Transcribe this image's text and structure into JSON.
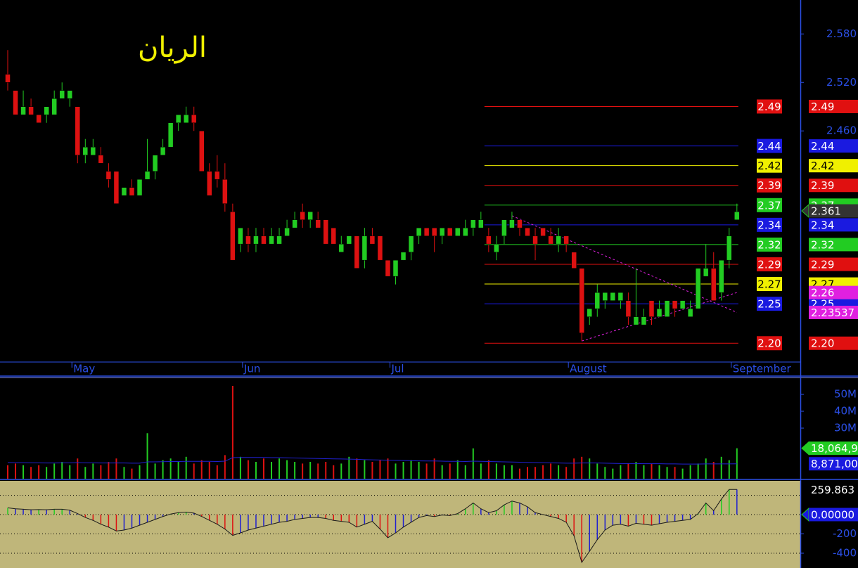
{
  "chart_data": [
    {
      "type": "candlestick",
      "title": "الريان",
      "categories": [
        null,
        null,
        null,
        null,
        null,
        null,
        null,
        null,
        "May",
        null,
        null,
        null,
        null,
        null,
        null,
        null,
        null,
        null,
        null,
        null,
        null,
        null,
        null,
        null,
        null,
        null,
        null,
        null,
        null,
        null,
        "Jun",
        null,
        null,
        null,
        null,
        null,
        null,
        null,
        null,
        null,
        null,
        null,
        null,
        null,
        null,
        null,
        null,
        null,
        null,
        "Jul",
        null,
        null,
        null,
        null,
        null,
        null,
        null,
        null,
        null,
        null,
        null,
        null,
        null,
        null,
        null,
        null,
        null,
        null,
        null,
        null,
        null,
        null,
        "August",
        null,
        null,
        null,
        null,
        null,
        null,
        null,
        null,
        null,
        null,
        null,
        null,
        null,
        null,
        null,
        null,
        null,
        null,
        null,
        null,
        "September",
        null
      ],
      "open": [
        2.53,
        2.51,
        2.48,
        2.49,
        2.48,
        2.48,
        2.48,
        2.5,
        2.5,
        2.49,
        2.43,
        2.43,
        2.43,
        2.41,
        2.41,
        2.38,
        2.39,
        2.38,
        2.4,
        2.41,
        2.43,
        2.44,
        2.47,
        2.47,
        2.48,
        2.46,
        2.41,
        2.41,
        2.4,
        2.36,
        2.32,
        2.33,
        2.32,
        2.33,
        2.32,
        2.32,
        2.33,
        2.34,
        2.36,
        2.35,
        2.35,
        2.35,
        2.34,
        2.31,
        2.32,
        2.33,
        2.3,
        2.33,
        2.33,
        2.3,
        2.28,
        2.3,
        2.31,
        2.33,
        2.34,
        2.34,
        2.33,
        2.34,
        2.33,
        2.33,
        2.34,
        2.34,
        2.33,
        2.31,
        2.33,
        2.34,
        2.35,
        2.34,
        2.33,
        2.34,
        2.33,
        2.32,
        2.33,
        2.31,
        2.29,
        2.23,
        2.24,
        2.25,
        2.25,
        2.25,
        2.25,
        2.22,
        2.22,
        2.25,
        2.23,
        2.23,
        2.25,
        2.24,
        2.23,
        2.24,
        2.28,
        2.29,
        2.26,
        2.3,
        2.35
      ],
      "high": [
        2.56,
        2.51,
        2.51,
        2.5,
        2.48,
        2.49,
        2.51,
        2.52,
        2.51,
        2.49,
        2.45,
        2.45,
        2.44,
        2.42,
        2.41,
        2.39,
        2.4,
        2.4,
        2.45,
        2.43,
        2.45,
        2.47,
        2.48,
        2.49,
        2.49,
        2.46,
        2.42,
        2.43,
        2.42,
        2.37,
        2.34,
        2.34,
        2.34,
        2.34,
        2.34,
        2.34,
        2.35,
        2.36,
        2.37,
        2.36,
        2.36,
        2.35,
        2.34,
        2.33,
        2.33,
        2.33,
        2.34,
        2.34,
        2.33,
        2.3,
        2.3,
        2.31,
        2.33,
        2.34,
        2.34,
        2.34,
        2.34,
        2.34,
        2.34,
        2.35,
        2.35,
        2.36,
        2.34,
        2.33,
        2.35,
        2.36,
        2.35,
        2.34,
        2.34,
        2.34,
        2.34,
        2.34,
        2.33,
        2.31,
        2.29,
        2.24,
        2.27,
        2.26,
        2.26,
        2.26,
        2.26,
        2.29,
        2.24,
        2.25,
        2.25,
        2.25,
        2.25,
        2.25,
        2.25,
        2.29,
        2.32,
        2.31,
        2.3,
        2.34,
        2.37
      ],
      "low": [
        2.51,
        2.48,
        2.48,
        2.48,
        2.47,
        2.47,
        2.48,
        2.5,
        2.49,
        2.42,
        2.42,
        2.43,
        2.42,
        2.39,
        2.37,
        2.38,
        2.38,
        2.38,
        2.4,
        2.4,
        2.43,
        2.44,
        2.46,
        2.47,
        2.46,
        2.41,
        2.38,
        2.39,
        2.36,
        2.3,
        2.31,
        2.31,
        2.31,
        2.32,
        2.32,
        2.32,
        2.33,
        2.34,
        2.34,
        2.34,
        2.34,
        2.32,
        2.32,
        2.31,
        2.32,
        2.29,
        2.29,
        2.32,
        2.3,
        2.28,
        2.27,
        2.3,
        2.3,
        2.32,
        2.33,
        2.31,
        2.32,
        2.33,
        2.33,
        2.33,
        2.33,
        2.34,
        2.31,
        2.3,
        2.32,
        2.34,
        2.33,
        2.33,
        2.3,
        2.33,
        2.32,
        2.31,
        2.31,
        2.29,
        2.2,
        2.22,
        2.23,
        2.24,
        2.25,
        2.24,
        2.22,
        2.22,
        2.22,
        2.22,
        2.23,
        2.23,
        2.23,
        2.24,
        2.23,
        2.24,
        2.28,
        2.25,
        2.25,
        2.29,
        2.35
      ],
      "close": [
        2.52,
        2.48,
        2.49,
        2.48,
        2.47,
        2.49,
        2.5,
        2.51,
        2.51,
        2.43,
        2.44,
        2.44,
        2.42,
        2.4,
        2.37,
        2.39,
        2.38,
        2.4,
        2.41,
        2.43,
        2.44,
        2.47,
        2.48,
        2.48,
        2.47,
        2.41,
        2.38,
        2.4,
        2.37,
        2.3,
        2.34,
        2.32,
        2.33,
        2.32,
        2.33,
        2.33,
        2.34,
        2.35,
        2.35,
        2.36,
        2.34,
        2.32,
        2.32,
        2.32,
        2.33,
        2.29,
        2.33,
        2.32,
        2.3,
        2.28,
        2.3,
        2.31,
        2.33,
        2.34,
        2.33,
        2.33,
        2.34,
        2.33,
        2.34,
        2.34,
        2.35,
        2.35,
        2.32,
        2.32,
        2.35,
        2.35,
        2.34,
        2.33,
        2.32,
        2.33,
        2.32,
        2.33,
        2.32,
        2.29,
        2.21,
        2.24,
        2.26,
        2.26,
        2.26,
        2.26,
        2.23,
        2.23,
        2.23,
        2.23,
        2.24,
        2.25,
        2.24,
        2.25,
        2.24,
        2.29,
        2.29,
        2.25,
        2.3,
        2.33,
        2.36
      ],
      "up_color": "#22cc22",
      "down_color": "#dd1111",
      "ylim": [
        2.174,
        2.622
      ],
      "yticks": [
        {
          "value": 2.58,
          "label": "2.580"
        },
        {
          "value": 2.52,
          "label": "2.520"
        },
        {
          "value": 2.46,
          "label": "2.460"
        }
      ],
      "levels": [
        {
          "value": 2.49023,
          "label": "2.49",
          "color": "#e01010"
        },
        {
          "value": 2.44141,
          "label": "2.44",
          "color": "#1a1ae0"
        },
        {
          "value": 2.41699,
          "label": "2.42",
          "color": "#f0f000"
        },
        {
          "value": 2.39258,
          "label": "2.39",
          "color": "#e01010"
        },
        {
          "value": 2.36816,
          "label": "2.37",
          "color": "#22cc22"
        },
        {
          "value": 2.34375,
          "label": "2.34",
          "color": "#1a1ae0"
        },
        {
          "value": 2.31934,
          "label": "2.32",
          "color": "#22cc22"
        },
        {
          "value": 2.29492,
          "label": "2.29",
          "color": "#e01010"
        },
        {
          "value": 2.27051,
          "label": "2.27",
          "color": "#f0f000"
        },
        {
          "value": 2.24609,
          "label": "2.25",
          "color": "#1a1ae0"
        },
        {
          "value": 2.19727,
          "label": "2.20",
          "color": "#e01010"
        }
      ],
      "markers": [
        {
          "value": 2.361,
          "color": "#333333"
        },
        {
          "value": 2.26,
          "color": "#e020e0"
        },
        {
          "value": 2.23537,
          "color": "#e020e0"
        }
      ],
      "trendlines": [
        {
          "x": [
            65,
            94
          ],
          "y": [
            2.355,
            2.23537
          ],
          "color": "#e020e0"
        },
        {
          "x": [
            74,
            94
          ],
          "y": [
            2.2,
            2.26
          ],
          "color": "#e020e0"
        }
      ]
    },
    {
      "type": "volume",
      "values": [
        8,
        9,
        8,
        7,
        8,
        7,
        9,
        10,
        8,
        12,
        7,
        9,
        8,
        10,
        12,
        7,
        6,
        8,
        27,
        9,
        11,
        12,
        10,
        13,
        9,
        11,
        10,
        8,
        14,
        55,
        13,
        11,
        10,
        12,
        10,
        12,
        11,
        10,
        9,
        10,
        9,
        10,
        8,
        9,
        13,
        12,
        11,
        10,
        11,
        12,
        9,
        10,
        11,
        10,
        9,
        12,
        8,
        9,
        11,
        8,
        18,
        9,
        11,
        9,
        8,
        8,
        6,
        7,
        7,
        8,
        9,
        8,
        7,
        12,
        13,
        12,
        9,
        7,
        6,
        8,
        9,
        10,
        8,
        9,
        8,
        7,
        7,
        6,
        8,
        9,
        12,
        10,
        13,
        11,
        18.0649
      ],
      "ma": [
        9.6,
        9.5,
        9.5,
        9.4,
        9.4,
        9.3,
        9.3,
        9.4,
        9.4,
        9.5,
        9.4,
        9.4,
        9.3,
        9.3,
        9.4,
        9.3,
        9.2,
        9.2,
        10.0,
        10.0,
        10.1,
        10.2,
        10.2,
        10.3,
        10.3,
        10.3,
        10.3,
        10.2,
        10.4,
        12.5,
        12.6,
        12.6,
        12.6,
        12.6,
        12.5,
        12.5,
        12.4,
        12.3,
        12.2,
        12.1,
        12.0,
        11.9,
        11.8,
        11.7,
        11.6,
        11.5,
        11.3,
        11.2,
        11.1,
        11.0,
        10.9,
        10.8,
        10.7,
        10.6,
        10.5,
        10.5,
        10.4,
        10.3,
        10.3,
        10.2,
        10.4,
        10.3,
        10.2,
        10.1,
        10.0,
        9.9,
        9.8,
        9.7,
        9.6,
        9.5,
        9.4,
        9.3,
        9.2,
        9.2,
        9.3,
        9.4,
        9.3,
        9.2,
        9.1,
        9.0,
        9.0,
        9.0,
        8.9,
        8.9,
        8.9,
        8.8,
        8.8,
        8.7,
        8.7,
        8.7,
        8.8,
        8.8,
        8.8,
        8.8,
        8.871
      ],
      "ma_color": "#2020d0",
      "ylim": [
        0,
        59.6
      ],
      "yticks": [
        {
          "value": 50,
          "label": "50M"
        },
        {
          "value": 40,
          "label": "40M"
        },
        {
          "value": 30,
          "label": "30M"
        }
      ],
      "markers": [
        {
          "value": 18.0649,
          "label": "18,064,9",
          "color": "#22cc22"
        },
        {
          "value": 8.871,
          "label": "8,871,00",
          "color": "#1a1ae0"
        }
      ]
    },
    {
      "type": "oscillator",
      "values": [
        70,
        60,
        55,
        50,
        52,
        50,
        55,
        55,
        45,
        10,
        -30,
        -60,
        -100,
        -130,
        -170,
        -160,
        -140,
        -110,
        -80,
        -50,
        -20,
        5,
        20,
        25,
        15,
        -20,
        -60,
        -100,
        -150,
        -215,
        -190,
        -160,
        -140,
        -120,
        -100,
        -80,
        -70,
        -50,
        -40,
        -30,
        -30,
        -40,
        -60,
        -70,
        -80,
        -130,
        -100,
        -70,
        -150,
        -240,
        -190,
        -130,
        -80,
        -30,
        -10,
        -20,
        -5,
        -10,
        10,
        60,
        120,
        60,
        20,
        40,
        100,
        140,
        120,
        80,
        20,
        0,
        -20,
        -40,
        -80,
        -220,
        -495,
        -380,
        -260,
        -160,
        -110,
        -100,
        -120,
        -90,
        -100,
        -110,
        -95,
        -80,
        -70,
        -60,
        -50,
        10,
        120,
        40,
        160,
        260,
        259.863
      ],
      "color": "#1a1a1a",
      "hist_colors": [
        "#22cc22",
        "#dd1111",
        "#2020d0"
      ],
      "ylim": [
        -553,
        349
      ],
      "yticks": [
        -200,
        -400
      ],
      "grid": [
        200,
        0,
        -200,
        -400
      ],
      "markers": [
        {
          "value": 259.863,
          "label": "259.863",
          "color": "#000000"
        },
        {
          "value": 0,
          "label": "0.00000",
          "color": "#1a1ae0"
        }
      ]
    }
  ]
}
